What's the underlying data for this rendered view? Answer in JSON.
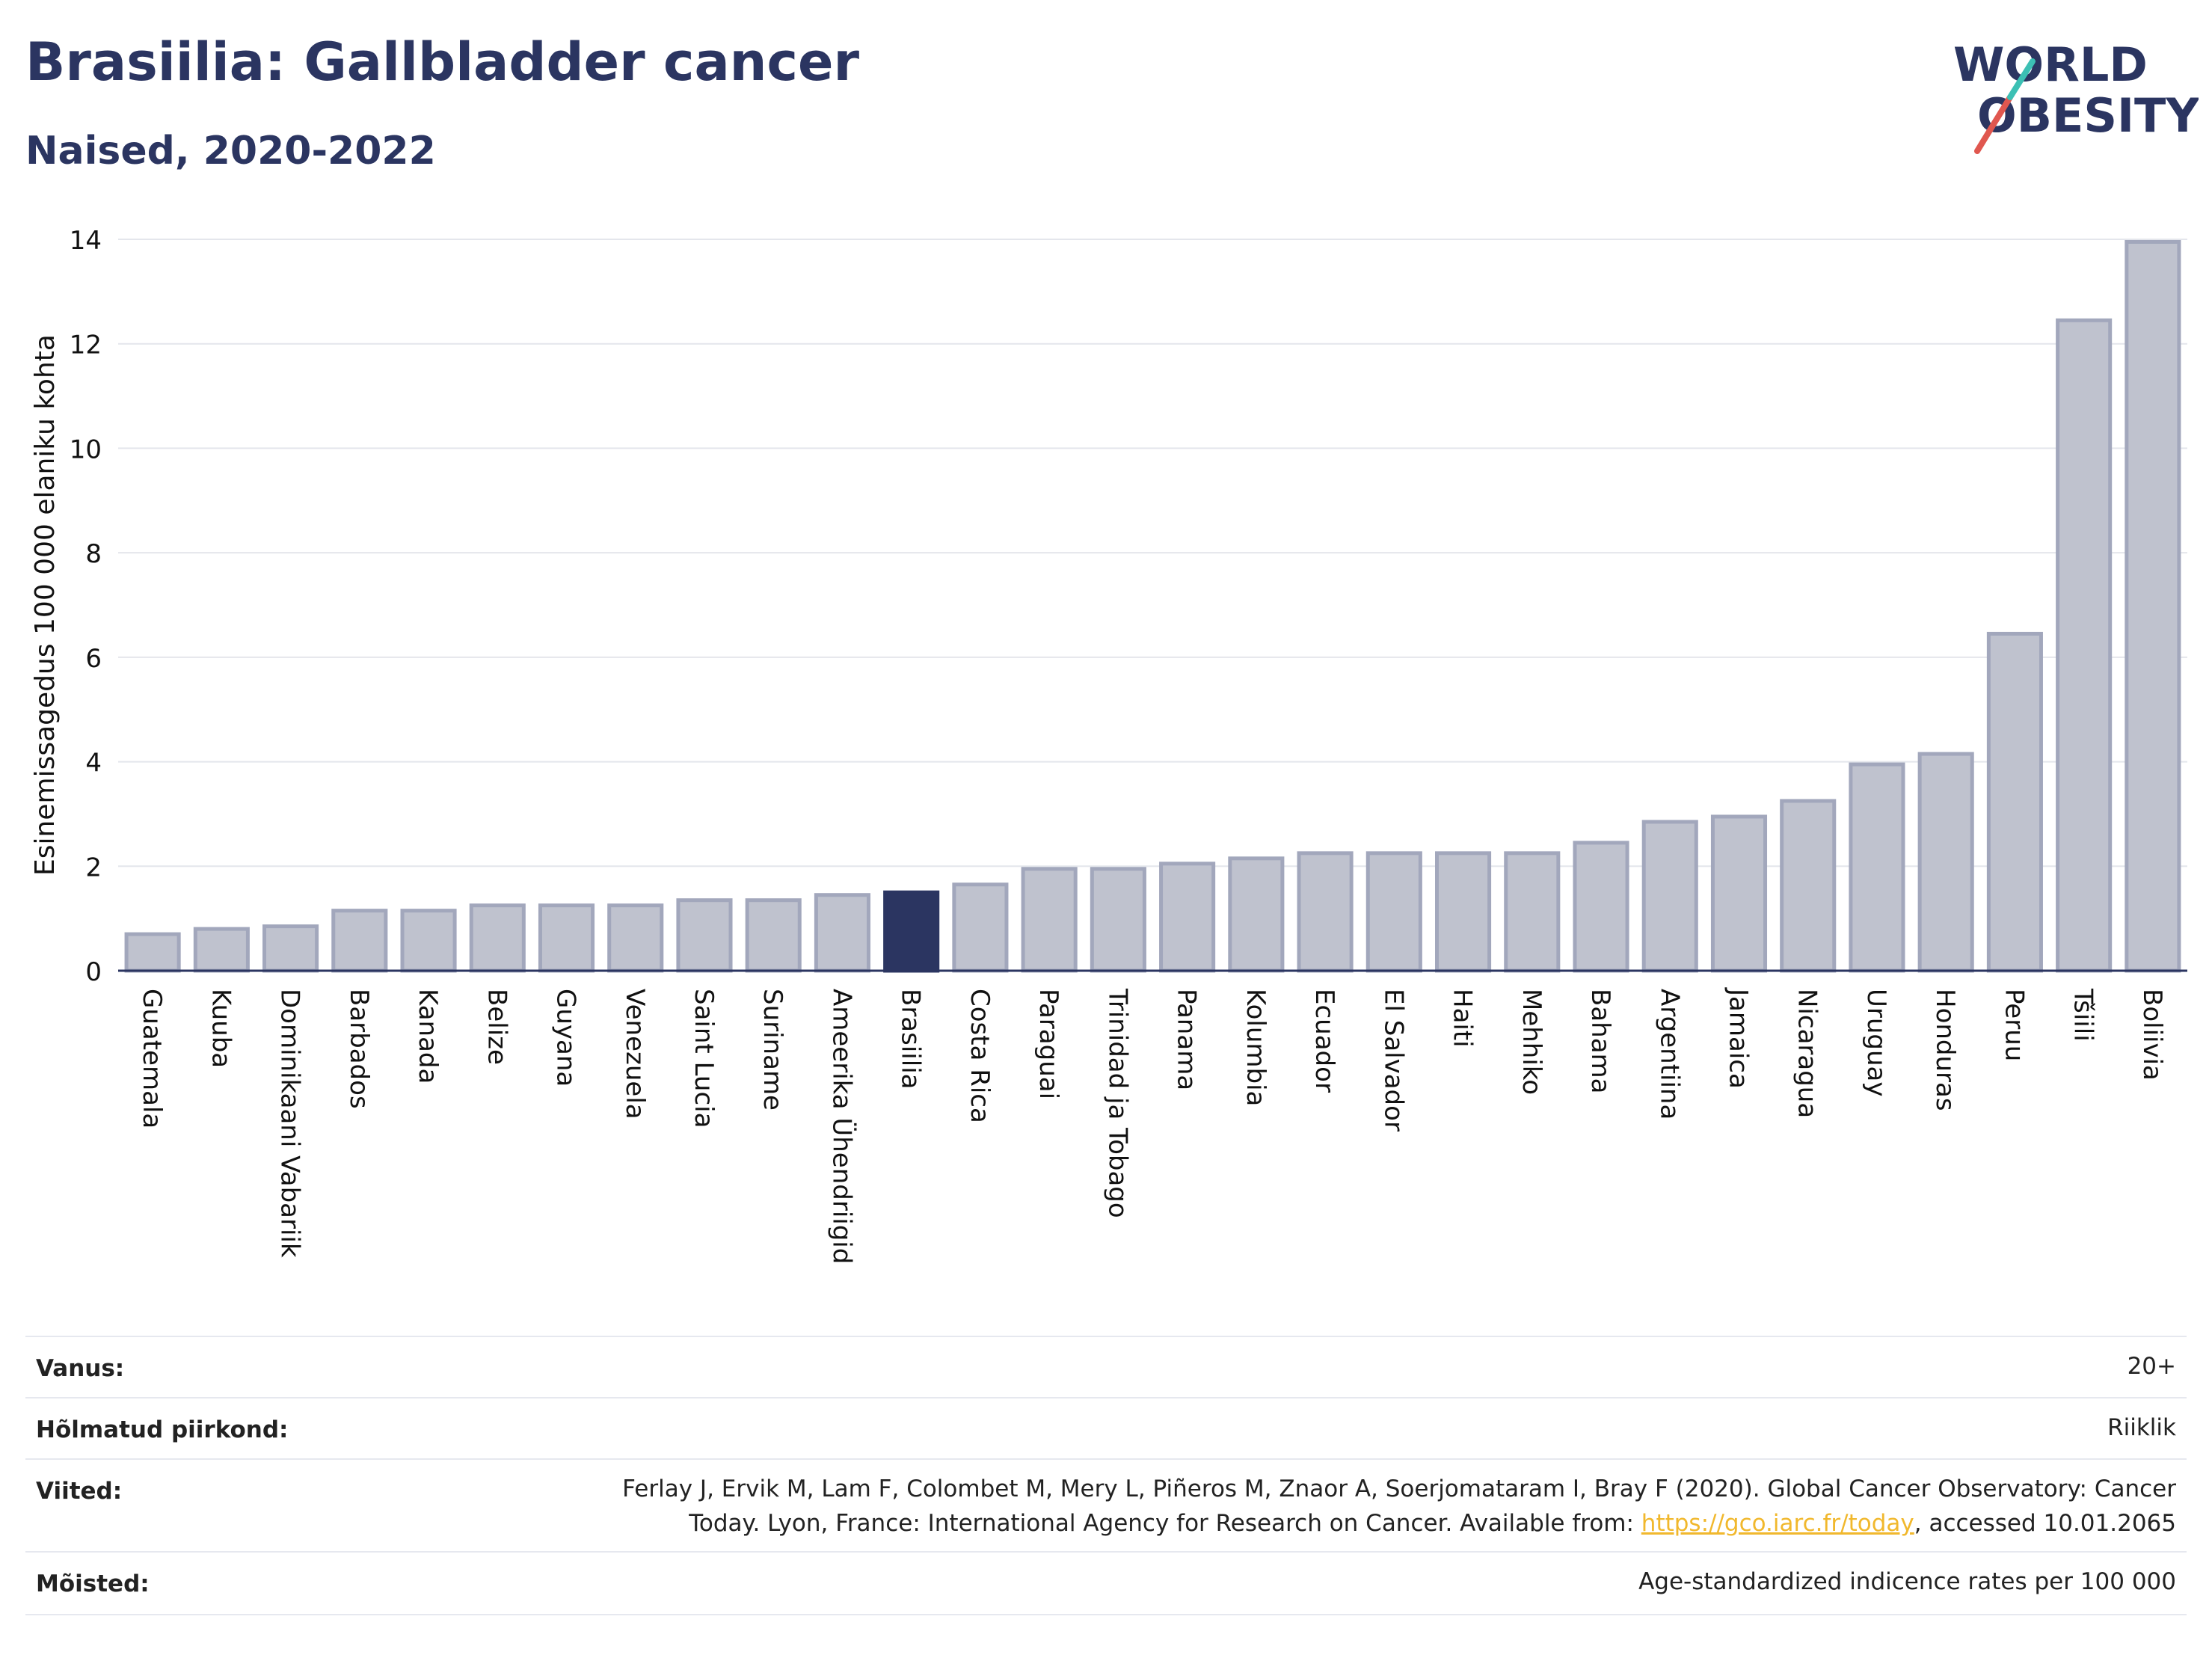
{
  "header": {
    "title": "Brasiilia: Gallbladder cancer",
    "subtitle": "Naised, 2020-2022"
  },
  "logo": {
    "line1": "WORLD",
    "line2": "OBESITY",
    "accent_colors": [
      "#e0574f",
      "#3cc0b4"
    ]
  },
  "chart_data": {
    "type": "bar",
    "ylabel": "Esinemissagedus 100 000 elaniku kohta",
    "ylim": [
      0,
      14
    ],
    "yticks": [
      0,
      2,
      4,
      6,
      8,
      10,
      12,
      14
    ],
    "grid": true,
    "highlight": "Brasiilia",
    "colors": {
      "bar": "#bfc2ce",
      "bar_edge": "#a2a7bc",
      "highlight": "#2b3561"
    },
    "categories": [
      "Guatemala",
      "Kuuba",
      "Dominikaani Vabariik",
      "Barbados",
      "Kanada",
      "Belize",
      "Guyana",
      "Venezuela",
      "Saint Lucia",
      "Suriname",
      "Ameerika Ühendriigid",
      "Brasiilia",
      "Costa Rica",
      "Paraguai",
      "Trinidad ja Tobago",
      "Panama",
      "Kolumbia",
      "Ecuador",
      "El Salvador",
      "Haiti",
      "Mehhiko",
      "Bahama",
      "Argentiina",
      "Jamaica",
      "Nicaragua",
      "Uruguay",
      "Honduras",
      "Peruu",
      "Tšiili",
      "Boliivia"
    ],
    "values": [
      0.7,
      0.8,
      0.85,
      1.15,
      1.15,
      1.25,
      1.25,
      1.25,
      1.35,
      1.35,
      1.45,
      1.5,
      1.65,
      1.95,
      1.95,
      2.05,
      2.15,
      2.25,
      2.25,
      2.25,
      2.25,
      2.45,
      2.85,
      2.95,
      3.25,
      3.95,
      4.15,
      6.45,
      12.45,
      13.95
    ]
  },
  "meta": {
    "age_label": "Vanus:",
    "age_value": "20+",
    "region_label": "Hõlmatud piirkond:",
    "region_value": "Riiklik",
    "refs_label": "Viited:",
    "refs_line1": "Ferlay J, Ervik M, Lam F, Colombet M, Mery L, Piñeros M, Znaor A, Soerjomataram I, Bray F (2020). Global Cancer Observatory: Cancer",
    "refs_line2_pre": "Today. Lyon, France: International Agency for Research on Cancer. Available from: ",
    "refs_link": "https://gco.iarc.fr/today",
    "refs_line2_post": ", accessed 10.01.2065",
    "defs_label": "Mõisted:",
    "defs_value": "Age-standardized indicence rates per 100 000"
  }
}
